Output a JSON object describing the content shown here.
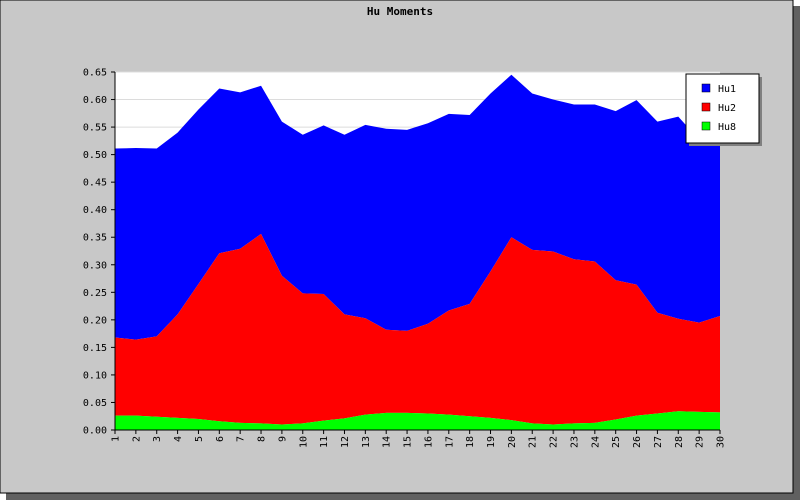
{
  "chart_data": {
    "type": "area",
    "stacked": true,
    "title": "Hu Moments",
    "xlabel": "",
    "ylabel": "",
    "categories": [
      "1",
      "2",
      "3",
      "4",
      "5",
      "6",
      "7",
      "8",
      "9",
      "10",
      "11",
      "12",
      "13",
      "14",
      "15",
      "16",
      "17",
      "18",
      "19",
      "20",
      "21",
      "22",
      "23",
      "24",
      "25",
      "26",
      "27",
      "28",
      "29",
      "30"
    ],
    "ylim": [
      0,
      0.65
    ],
    "yticks": [
      "0.00",
      "0.05",
      "0.10",
      "0.15",
      "0.20",
      "0.25",
      "0.30",
      "0.35",
      "0.40",
      "0.45",
      "0.50",
      "0.55",
      "0.60",
      "0.65"
    ],
    "grid": true,
    "legend_position": "top-right",
    "series": [
      {
        "name": "Hu1",
        "color": "#0000ff",
        "totals": [
          0.511,
          0.512,
          0.511,
          0.54,
          0.582,
          0.62,
          0.613,
          0.625,
          0.56,
          0.536,
          0.553,
          0.536,
          0.554,
          0.547,
          0.545,
          0.557,
          0.574,
          0.572,
          0.611,
          0.645,
          0.611,
          0.6,
          0.591,
          0.591,
          0.579,
          0.599,
          0.56,
          0.569,
          0.527,
          0.525
        ]
      },
      {
        "name": "Hu2",
        "color": "#ff0000",
        "totals": [
          0.168,
          0.164,
          0.17,
          0.21,
          0.265,
          0.321,
          0.329,
          0.356,
          0.28,
          0.248,
          0.247,
          0.21,
          0.203,
          0.182,
          0.18,
          0.193,
          0.217,
          0.229,
          0.288,
          0.35,
          0.327,
          0.324,
          0.31,
          0.306,
          0.272,
          0.264,
          0.213,
          0.202,
          0.195,
          0.207
        ]
      },
      {
        "name": "Hu8",
        "color": "#00ff00",
        "totals": [
          0.026,
          0.026,
          0.024,
          0.022,
          0.02,
          0.016,
          0.013,
          0.012,
          0.01,
          0.012,
          0.017,
          0.021,
          0.028,
          0.031,
          0.031,
          0.03,
          0.028,
          0.025,
          0.022,
          0.018,
          0.012,
          0.01,
          0.012,
          0.013,
          0.019,
          0.026,
          0.03,
          0.034,
          0.033,
          0.032
        ]
      }
    ]
  },
  "colors": {
    "outer_background": "#c8c8c8",
    "plot_background": "#ffffff",
    "grid": "#dcdcdc",
    "shadow": "#606060"
  }
}
